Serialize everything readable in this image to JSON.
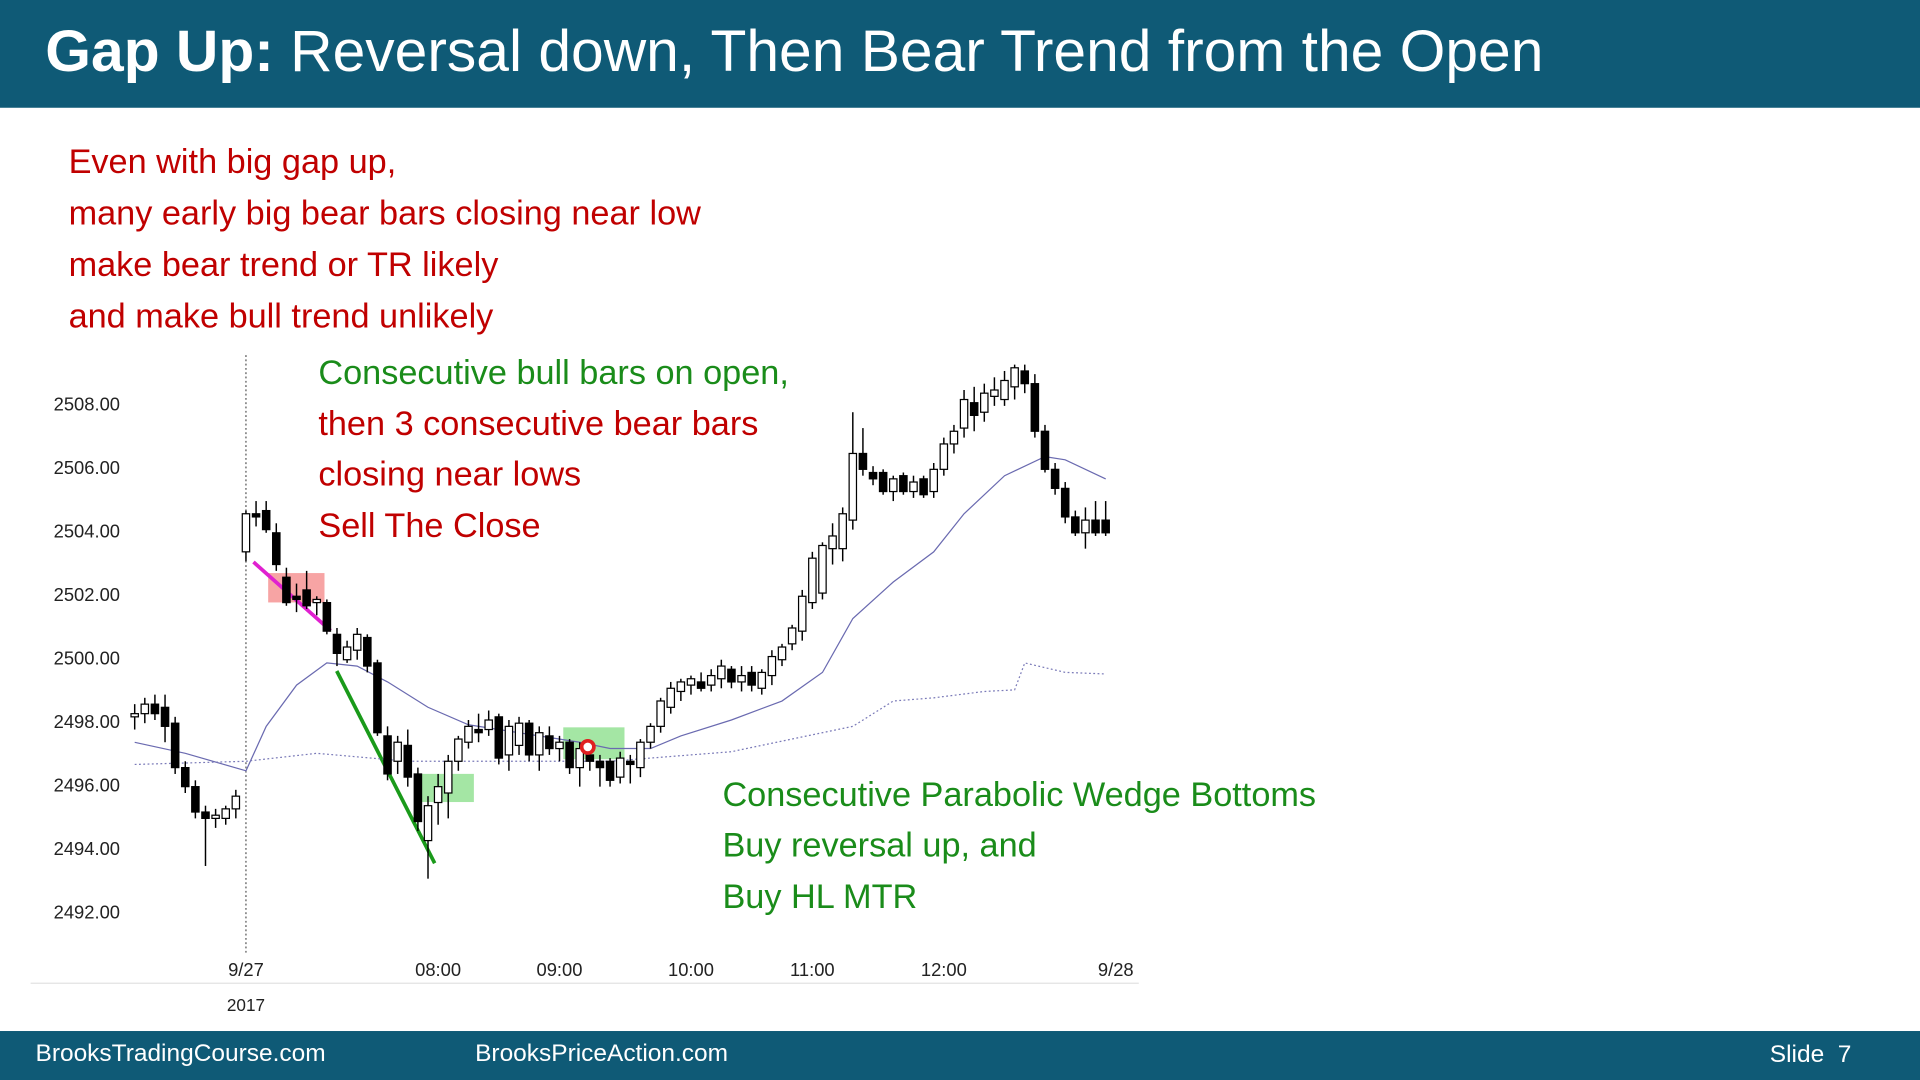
{
  "header": {
    "title_bold": "Gap Up:",
    "title_rest": "Reversal down, Then Bear Trend from the Open"
  },
  "annotations": [
    {
      "text": "Even with big gap up,",
      "color": "#c00000"
    },
    {
      "text": "many early big bear bars closing near low",
      "color": "#c00000"
    },
    {
      "text": "make bear trend or TR likely",
      "color": "#c00000"
    },
    {
      "text": "and make bull trend unlikely",
      "color": "#c00000"
    },
    {
      "text": "Consecutive bull bars on open,",
      "color": "#1a8c1a"
    },
    {
      "text": "then 3 consecutive bear bars",
      "color": "#c00000"
    },
    {
      "text": "closing near lows",
      "color": "#c00000"
    },
    {
      "text": "Sell The Close",
      "color": "#c00000"
    },
    {
      "text": "Consecutive Parabolic Wedge Bottoms",
      "color": "#1a8c1a"
    },
    {
      "text": "Buy reversal up, and",
      "color": "#1a8c1a"
    },
    {
      "text": "Buy HL MTR",
      "color": "#1a8c1a"
    }
  ],
  "chart_data": {
    "type": "candlestick",
    "x": [
      0,
      1,
      2,
      3,
      4,
      5,
      6,
      7,
      8,
      9,
      10,
      11,
      12,
      13,
      14,
      15,
      16,
      17,
      18,
      19,
      20,
      21,
      22,
      23,
      24,
      25,
      26,
      27,
      28,
      29,
      30,
      31,
      32,
      33,
      34,
      35,
      36,
      37,
      38,
      39,
      40,
      41,
      42,
      43,
      44,
      45,
      46,
      47,
      48,
      49,
      50,
      51,
      52,
      53,
      54,
      55,
      56,
      57,
      58,
      59,
      60,
      61,
      62,
      63,
      64,
      65,
      66,
      67,
      68,
      69,
      70,
      71,
      72,
      73,
      74,
      75,
      76,
      77,
      78,
      79,
      80,
      81,
      82,
      83,
      84,
      85,
      86,
      87,
      88,
      89,
      90,
      91,
      92,
      93,
      94,
      95,
      96
    ],
    "ohlc": [
      [
        2498.2,
        2498.6,
        2497.8,
        2498.3
      ],
      [
        2498.3,
        2498.8,
        2498.0,
        2498.6
      ],
      [
        2498.6,
        2498.9,
        2498.1,
        2498.3
      ],
      [
        2498.5,
        2498.9,
        2497.4,
        2497.9
      ],
      [
        2498.0,
        2498.2,
        2496.4,
        2496.6
      ],
      [
        2496.6,
        2496.8,
        2495.8,
        2496.0
      ],
      [
        2496.0,
        2496.2,
        2495.0,
        2495.2
      ],
      [
        2495.2,
        2495.4,
        2493.5,
        2495.0
      ],
      [
        2495.0,
        2495.3,
        2494.7,
        2495.1
      ],
      [
        2495.0,
        2495.4,
        2494.8,
        2495.3
      ],
      [
        2495.3,
        2495.9,
        2495.0,
        2495.7
      ],
      [
        2503.4,
        2504.7,
        2503.1,
        2504.6
      ],
      [
        2504.6,
        2505.0,
        2504.2,
        2504.5
      ],
      [
        2504.7,
        2505.0,
        2504.0,
        2504.1
      ],
      [
        2504.0,
        2504.3,
        2502.8,
        2503.0
      ],
      [
        2502.6,
        2502.9,
        2501.7,
        2501.8
      ],
      [
        2502.0,
        2502.4,
        2501.5,
        2501.9
      ],
      [
        2502.2,
        2502.8,
        2501.6,
        2501.7
      ],
      [
        2501.8,
        2502.0,
        2501.4,
        2501.9
      ],
      [
        2501.8,
        2501.9,
        2500.8,
        2500.9
      ],
      [
        2500.8,
        2501.0,
        2499.8,
        2500.2
      ],
      [
        2500.0,
        2500.6,
        2499.9,
        2500.4
      ],
      [
        2500.3,
        2501.0,
        2500.0,
        2500.8
      ],
      [
        2500.7,
        2500.8,
        2499.6,
        2499.8
      ],
      [
        2499.9,
        2500.0,
        2497.6,
        2497.7
      ],
      [
        2497.6,
        2497.9,
        2496.2,
        2496.4
      ],
      [
        2496.8,
        2497.6,
        2496.4,
        2497.4
      ],
      [
        2497.3,
        2497.8,
        2496.0,
        2496.3
      ],
      [
        2496.4,
        2496.6,
        2494.6,
        2494.9
      ],
      [
        2494.3,
        2495.7,
        2493.1,
        2495.4
      ],
      [
        2495.5,
        2496.4,
        2494.8,
        2496.0
      ],
      [
        2495.8,
        2497.0,
        2495.0,
        2496.8
      ],
      [
        2496.8,
        2497.6,
        2496.5,
        2497.5
      ],
      [
        2497.4,
        2498.1,
        2497.2,
        2497.9
      ],
      [
        2497.8,
        2498.3,
        2497.4,
        2497.7
      ],
      [
        2497.8,
        2498.4,
        2497.6,
        2498.1
      ],
      [
        2498.2,
        2498.3,
        2496.7,
        2496.9
      ],
      [
        2497.0,
        2498.1,
        2496.5,
        2497.9
      ],
      [
        2497.3,
        2498.2,
        2497.0,
        2498.0
      ],
      [
        2498.0,
        2498.1,
        2496.8,
        2497.0
      ],
      [
        2497.0,
        2497.9,
        2496.5,
        2497.7
      ],
      [
        2497.6,
        2497.9,
        2497.0,
        2497.2
      ],
      [
        2497.2,
        2497.6,
        2496.8,
        2497.4
      ],
      [
        2497.4,
        2497.5,
        2496.4,
        2496.6
      ],
      [
        2496.6,
        2497.4,
        2496.0,
        2497.2
      ],
      [
        2497.0,
        2497.3,
        2496.5,
        2496.8
      ],
      [
        2496.8,
        2497.0,
        2496.0,
        2496.6
      ],
      [
        2496.8,
        2496.9,
        2496.0,
        2496.2
      ],
      [
        2496.3,
        2497.1,
        2496.1,
        2496.9
      ],
      [
        2496.8,
        2497.0,
        2496.1,
        2496.7
      ],
      [
        2496.6,
        2497.5,
        2496.3,
        2497.4
      ],
      [
        2497.4,
        2498.0,
        2497.2,
        2497.9
      ],
      [
        2497.9,
        2498.8,
        2497.7,
        2498.7
      ],
      [
        2498.5,
        2499.3,
        2498.3,
        2499.1
      ],
      [
        2499.0,
        2499.4,
        2498.7,
        2499.3
      ],
      [
        2499.2,
        2499.5,
        2498.9,
        2499.4
      ],
      [
        2499.3,
        2499.6,
        2499.0,
        2499.1
      ],
      [
        2499.2,
        2499.7,
        2499.0,
        2499.5
      ],
      [
        2499.4,
        2500.0,
        2499.1,
        2499.8
      ],
      [
        2499.7,
        2499.8,
        2499.1,
        2499.3
      ],
      [
        2499.3,
        2499.8,
        2499.0,
        2499.5
      ],
      [
        2499.6,
        2499.8,
        2499.0,
        2499.2
      ],
      [
        2499.1,
        2499.7,
        2498.9,
        2499.6
      ],
      [
        2499.5,
        2500.3,
        2499.2,
        2500.1
      ],
      [
        2500.0,
        2500.5,
        2499.8,
        2500.4
      ],
      [
        2500.5,
        2501.1,
        2500.3,
        2501.0
      ],
      [
        2500.9,
        2502.2,
        2500.6,
        2502.0
      ],
      [
        2501.8,
        2503.4,
        2501.6,
        2503.2
      ],
      [
        2502.1,
        2503.7,
        2501.9,
        2503.6
      ],
      [
        2503.5,
        2504.3,
        2503.0,
        2503.9
      ],
      [
        2503.5,
        2504.8,
        2503.1,
        2504.6
      ],
      [
        2504.4,
        2507.8,
        2504.1,
        2506.5
      ],
      [
        2506.5,
        2507.3,
        2505.8,
        2506.0
      ],
      [
        2505.9,
        2506.1,
        2505.5,
        2505.7
      ],
      [
        2505.9,
        2506.0,
        2505.2,
        2505.3
      ],
      [
        2505.3,
        2505.8,
        2505.0,
        2505.7
      ],
      [
        2505.8,
        2505.9,
        2505.2,
        2505.3
      ],
      [
        2505.3,
        2505.8,
        2505.1,
        2505.6
      ],
      [
        2505.7,
        2505.8,
        2505.1,
        2505.2
      ],
      [
        2505.3,
        2506.2,
        2505.1,
        2506.0
      ],
      [
        2506.0,
        2507.0,
        2505.8,
        2506.8
      ],
      [
        2506.8,
        2507.4,
        2506.5,
        2507.2
      ],
      [
        2507.3,
        2508.5,
        2507.0,
        2508.2
      ],
      [
        2508.1,
        2508.6,
        2507.2,
        2507.7
      ],
      [
        2507.8,
        2508.7,
        2507.5,
        2508.4
      ],
      [
        2508.3,
        2508.9,
        2508.0,
        2508.5
      ],
      [
        2508.2,
        2509.1,
        2508.0,
        2508.8
      ],
      [
        2508.6,
        2509.3,
        2508.2,
        2509.2
      ],
      [
        2509.1,
        2509.3,
        2508.4,
        2508.7
      ],
      [
        2508.7,
        2509.0,
        2507.0,
        2507.2
      ],
      [
        2507.2,
        2507.4,
        2505.9,
        2506.0
      ],
      [
        2506.0,
        2506.2,
        2505.2,
        2505.4
      ],
      [
        2505.4,
        2505.6,
        2504.3,
        2504.5
      ],
      [
        2504.5,
        2504.7,
        2503.9,
        2504.0
      ],
      [
        2504.0,
        2504.8,
        2503.5,
        2504.4
      ],
      [
        2504.4,
        2505.0,
        2503.9,
        2504.0
      ],
      [
        2504.4,
        2505.0,
        2503.9,
        2504.0
      ]
    ],
    "up_color": "#ffffff",
    "down_color": "#000000",
    "outline_color": "#000000",
    "lines": [
      {
        "color": "#6a6ab0",
        "style": "solid",
        "x": [
          0,
          5,
          11,
          13,
          16,
          19,
          22,
          25,
          29,
          33,
          38,
          44,
          47,
          51,
          54,
          59,
          64,
          68,
          71,
          75,
          79,
          82,
          86,
          90,
          92,
          96
        ],
        "values": [
          2497.4,
          2497.05,
          2496.5,
          2497.9,
          2499.2,
          2499.9,
          2499.8,
          2499.3,
          2498.5,
          2497.95,
          2497.7,
          2497.4,
          2497.2,
          2497.2,
          2497.6,
          2498.1,
          2498.7,
          2499.6,
          2501.3,
          2502.45,
          2503.4,
          2504.6,
          2505.8,
          2506.4,
          2506.3,
          2505.7
        ]
      },
      {
        "color": "#7a7ab8",
        "style": "dotted",
        "x": [
          0,
          11,
          18,
          27,
          35,
          47,
          59,
          71,
          75,
          79,
          84,
          87,
          88,
          92,
          96
        ],
        "values": [
          2496.7,
          2496.8,
          2497.05,
          2496.8,
          2496.8,
          2496.8,
          2497.1,
          2497.9,
          2498.7,
          2498.8,
          2499.0,
          2499.05,
          2499.9,
          2499.6,
          2499.55
        ]
      }
    ],
    "xlim": [
      -1,
      101
    ],
    "ylim": [
      2491,
      2509.6
    ],
    "xticks": [
      {
        "value": 11,
        "label": "9/27"
      },
      {
        "value": 30,
        "label": "08:00"
      },
      {
        "value": 42,
        "label": "09:00"
      },
      {
        "value": 55,
        "label": "10:00"
      },
      {
        "value": 67,
        "label": "11:00"
      },
      {
        "value": 80,
        "label": "12:00"
      },
      {
        "value": 97,
        "label": "9/28"
      }
    ],
    "year_label": "2017",
    "yticks": [
      {
        "value": 2492,
        "label": "2492.00"
      },
      {
        "value": 2494,
        "label": "2494.00"
      },
      {
        "value": 2496,
        "label": "2496.00"
      },
      {
        "value": 2498,
        "label": "2498.00"
      },
      {
        "value": 2500,
        "label": "2500.00"
      },
      {
        "value": 2502,
        "label": "2502.00"
      },
      {
        "value": 2504,
        "label": "2504.00"
      },
      {
        "value": 2506,
        "label": "2506.00"
      },
      {
        "value": 2508,
        "label": "2508.00"
      }
    ],
    "grid": false
  },
  "footer": {
    "left": "BrooksTradingCourse.com",
    "center": "BrooksPriceAction.com",
    "slide": "Slide  7"
  }
}
